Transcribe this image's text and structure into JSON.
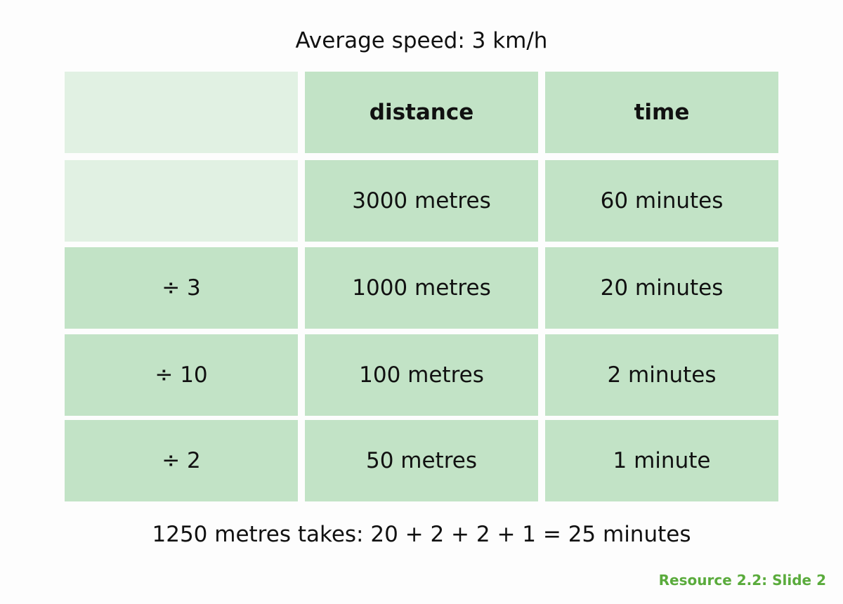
{
  "header": {
    "title": "Average speed: 3 km/h"
  },
  "table": {
    "columns": [
      "distance",
      "time"
    ],
    "rows": [
      {
        "cells": [
          "3000 metres",
          "60 minutes"
        ]
      },
      {
        "step": "÷ 3",
        "cells": [
          "1000 metres",
          "20 minutes"
        ]
      },
      {
        "step": "÷ 10",
        "cells": [
          "100 metres",
          "2 minutes"
        ]
      },
      {
        "step": "÷ 2",
        "cells": [
          "50 metres",
          "1 minute"
        ]
      }
    ]
  },
  "footer": {
    "summary": "1250 metres takes: 20 + 2 + 2 + 1 = 25 minutes",
    "source": "Resource 2.2: Slide 2"
  }
}
